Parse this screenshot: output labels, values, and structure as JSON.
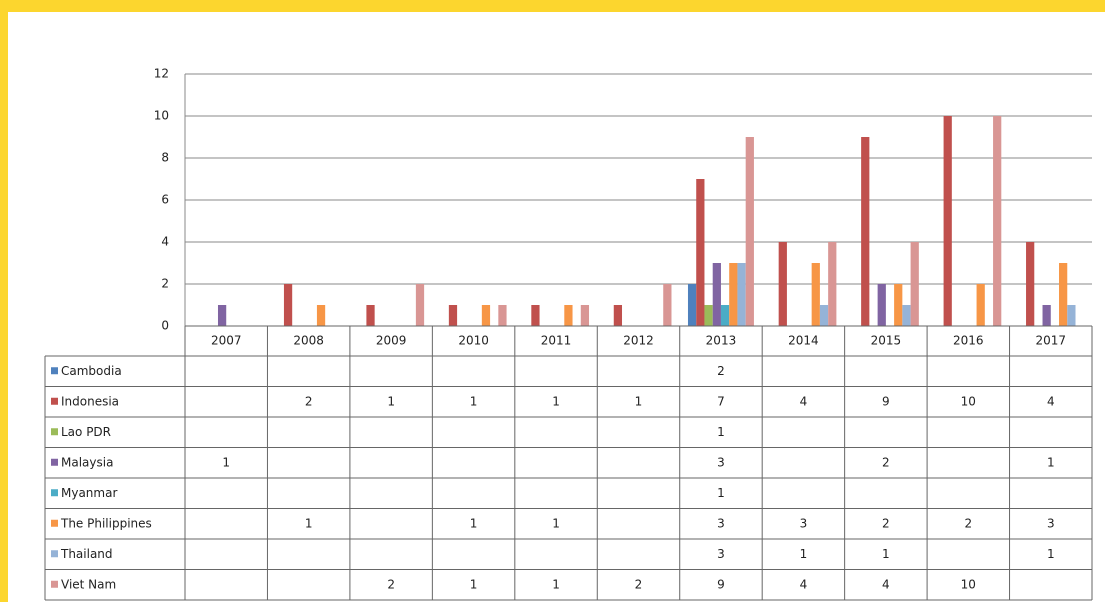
{
  "chart_data": {
    "type": "bar",
    "categories": [
      "2007",
      "2008",
      "2009",
      "2010",
      "2011",
      "2012",
      "2013",
      "2014",
      "2015",
      "2016",
      "2017"
    ],
    "series": [
      {
        "name": "Cambodia",
        "color": "#4f81bd",
        "values": [
          null,
          null,
          null,
          null,
          null,
          null,
          2,
          null,
          null,
          null,
          null
        ]
      },
      {
        "name": "Indonesia",
        "color": "#c0504d",
        "values": [
          null,
          2,
          1,
          1,
          1,
          1,
          7,
          4,
          9,
          10,
          4
        ]
      },
      {
        "name": "Lao PDR",
        "color": "#9bbb59",
        "values": [
          null,
          null,
          null,
          null,
          null,
          null,
          1,
          null,
          null,
          null,
          null
        ]
      },
      {
        "name": "Malaysia",
        "color": "#8064a2",
        "values": [
          1,
          null,
          null,
          null,
          null,
          null,
          3,
          null,
          2,
          null,
          1
        ]
      },
      {
        "name": "Myanmar",
        "color": "#4bacc6",
        "values": [
          null,
          null,
          null,
          null,
          null,
          null,
          1,
          null,
          null,
          null,
          null
        ]
      },
      {
        "name": "The Philippines",
        "color": "#f79646",
        "values": [
          null,
          1,
          null,
          1,
          1,
          null,
          3,
          3,
          2,
          2,
          3
        ]
      },
      {
        "name": "Thailand",
        "color": "#95b3d7",
        "values": [
          null,
          null,
          null,
          null,
          null,
          null,
          3,
          1,
          1,
          null,
          1
        ]
      },
      {
        "name": "Viet Nam",
        "color": "#d99694",
        "values": [
          null,
          null,
          2,
          1,
          1,
          2,
          9,
          4,
          4,
          10,
          null
        ]
      }
    ],
    "ylim": [
      0,
      12
    ],
    "yticks": [
      0,
      2,
      4,
      6,
      8,
      10,
      12
    ],
    "grid": true,
    "legend": "table"
  }
}
